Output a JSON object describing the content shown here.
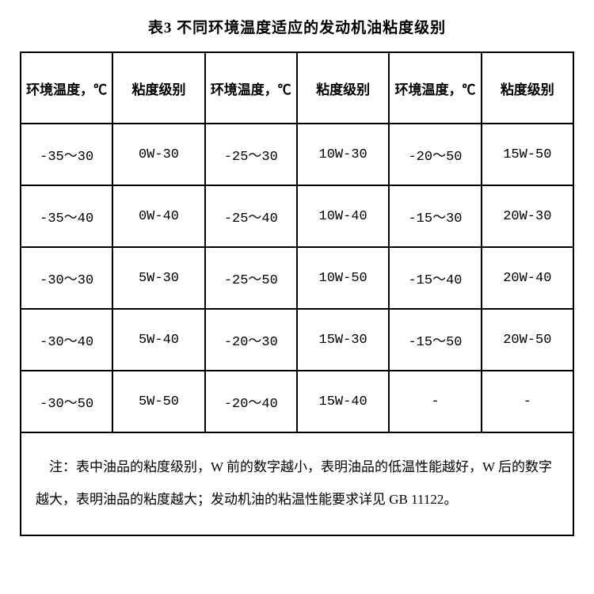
{
  "title": "表3  不同环境温度适应的发动机油粘度级别",
  "table": {
    "type": "table",
    "columns": [
      "环境温度，℃",
      "粘度级别",
      "环境温度，℃",
      "粘度级别",
      "环境温度，℃",
      "粘度级别"
    ],
    "rows": [
      [
        "-35～30",
        "0W-30",
        "-25～30",
        "10W-30",
        "-20～50",
        "15W-50"
      ],
      [
        "-35～40",
        "0W-40",
        "-25～40",
        "10W-40",
        "-15～30",
        "20W-30"
      ],
      [
        "-30～30",
        "5W-30",
        "-25～50",
        "10W-50",
        "-15～40",
        "20W-40"
      ],
      [
        "-30～40",
        "5W-40",
        "-20～30",
        "15W-30",
        "-15～50",
        "20W-50"
      ],
      [
        "-30～50",
        "5W-50",
        "-20～40",
        "15W-40",
        "-",
        "-"
      ]
    ],
    "footnote": "　注：表中油品的粘度级别，W 前的数字越小，表明油品的低温性能越好，W 后的数字越大，表明油品的粘度越大；发动机油的粘温性能要求详见 GB 11122。",
    "border_color": "#000000",
    "background_color": "#ffffff",
    "header_fontsize": 17,
    "cell_fontsize": 17,
    "title_fontsize": 19
  }
}
